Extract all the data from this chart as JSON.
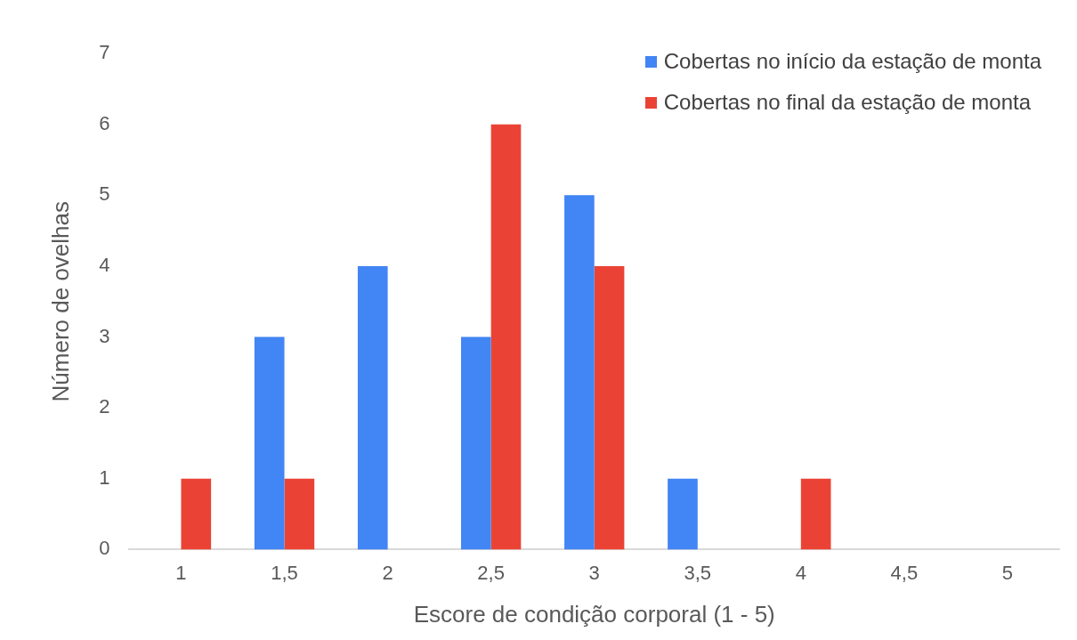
{
  "chart_data": {
    "type": "bar",
    "xlabel": "Escore de condição corporal (1 - 5)",
    "ylabel": "Número de ovelhas",
    "categories": [
      "1",
      "1,5",
      "2",
      "2,5",
      "3",
      "3,5",
      "4",
      "4,5",
      "5"
    ],
    "series": [
      {
        "name": "Cobertas no início da estação de monta",
        "color": "#4285f4",
        "values": [
          0,
          3,
          4,
          3,
          5,
          1,
          0,
          0,
          0
        ]
      },
      {
        "name": "Cobertas no final da estação de monta",
        "color": "#ea4335",
        "values": [
          1,
          1,
          0,
          6,
          4,
          0,
          1,
          0,
          0
        ]
      }
    ],
    "ylim": [
      0,
      7
    ],
    "yticks": [
      0,
      1,
      2,
      3,
      4,
      5,
      6,
      7
    ],
    "grid": false,
    "legend": "top right"
  }
}
